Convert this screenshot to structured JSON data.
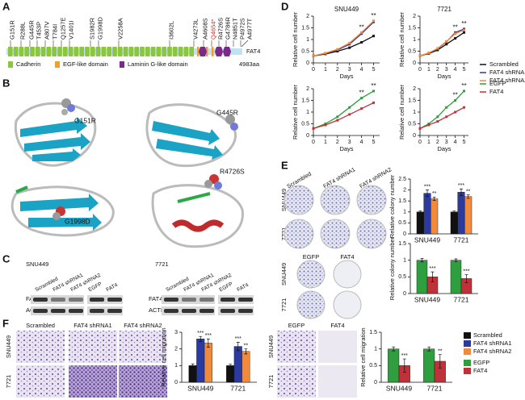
{
  "panels": {
    "a": "A",
    "b": "B",
    "c": "C",
    "d": "D",
    "e": "E",
    "f": "F"
  },
  "panel_a": {
    "mutations": [
      "G151R",
      "R288L",
      "G445R",
      "T453P",
      "A807V",
      "T784I",
      "Q1257E",
      "V1401I",
      "S1982R",
      "G1998D",
      "V2258A",
      "I3602L",
      "V4273L",
      "A4608S",
      "Q4654*",
      "R4726S",
      "G4786R",
      "N4851T",
      "P4972S",
      "A4977T"
    ],
    "protein": "FAT4",
    "length": "4983aa",
    "legend": [
      "Cadherin",
      "EGF-like domain",
      "Laminin G-like domain"
    ]
  },
  "panel_b": {
    "labels": [
      "G151R",
      "G445R",
      "G1998D",
      "R4726S"
    ]
  },
  "panel_c": {
    "cell_lines": [
      "SNU449",
      "7721"
    ],
    "lanes": [
      "Scrambled",
      "FAT4 shRNA1",
      "FAT4 shRNA2",
      "EGFP",
      "FAT4"
    ],
    "rows": [
      "FAT4",
      "ACTB"
    ]
  },
  "panel_e": {
    "columns_top": [
      "Scrambled",
      "FAT4 shRNA1",
      "FAT4 shRNA2"
    ],
    "columns_bottom": [
      "EGFP",
      "FAT4"
    ],
    "rows": [
      "SNU449",
      "7721"
    ]
  },
  "panel_f": {
    "columns_left": [
      "Scrambled",
      "FAT4 shRNA1",
      "FAT4 shRNA2"
    ],
    "columns_right": [
      "EGFP",
      "FAT4"
    ],
    "rows": [
      "SNU449",
      "7721"
    ]
  },
  "chart_data": [
    {
      "type": "line",
      "title": "SNU449",
      "ylabel": "Relative cell number",
      "xlabel": "Days",
      "x": [
        0,
        1,
        2,
        3,
        4,
        5
      ],
      "xlim": [
        0,
        5.5
      ],
      "xticks": [
        0,
        1,
        2,
        3,
        4,
        5
      ],
      "ylim": [
        0,
        2
      ],
      "yticks": [
        0,
        0.5,
        1,
        1.5,
        2
      ],
      "legend": "right",
      "series": [
        {
          "name": "Scrambled",
          "color": "#111111",
          "values": [
            0.3,
            0.38,
            0.5,
            0.65,
            0.88,
            1.15
          ]
        },
        {
          "name": "FAT4 shRNA1",
          "color": "#2b3a9e",
          "values": [
            0.3,
            0.4,
            0.55,
            0.8,
            1.25,
            1.75
          ]
        },
        {
          "name": "FAT4 shRNA2",
          "color": "#f08a3c",
          "values": [
            0.3,
            0.42,
            0.58,
            0.85,
            1.3,
            1.8
          ]
        }
      ],
      "annotations": [
        {
          "x": 4,
          "text": "**"
        },
        {
          "x": 5,
          "text": "**"
        }
      ]
    },
    {
      "type": "line",
      "title": "7721",
      "ylabel": "Relative cell number",
      "xlabel": "Days",
      "x": [
        0,
        1,
        2,
        3,
        4,
        5
      ],
      "xlim": [
        0,
        5.5
      ],
      "xticks": [
        0,
        1,
        2,
        3,
        4,
        5
      ],
      "ylim": [
        0,
        2
      ],
      "yticks": [
        0,
        0.5,
        1,
        1.5,
        2
      ],
      "series": [
        {
          "name": "Scrambled",
          "color": "#111111",
          "values": [
            0.3,
            0.4,
            0.55,
            0.8,
            1.05,
            1.3
          ]
        },
        {
          "name": "FAT4 shRNA1",
          "color": "#2b3a9e",
          "values": [
            0.3,
            0.42,
            0.6,
            0.9,
            1.3,
            1.45
          ]
        },
        {
          "name": "FAT4 shRNA2",
          "color": "#f08a3c",
          "values": [
            0.3,
            0.43,
            0.62,
            0.92,
            1.25,
            1.4
          ]
        }
      ],
      "annotations": [
        {
          "x": 4,
          "text": "**"
        },
        {
          "x": 5,
          "text": "**"
        }
      ]
    },
    {
      "type": "line",
      "ylabel": "Relative cell number",
      "xlabel": "Days",
      "x": [
        0,
        1,
        2,
        3,
        4,
        5
      ],
      "xlim": [
        0,
        5.5
      ],
      "xticks": [
        0,
        1,
        2,
        3,
        4,
        5
      ],
      "ylim": [
        0,
        2
      ],
      "yticks": [
        0,
        0.5,
        1,
        1.5,
        2
      ],
      "legend": "right",
      "series": [
        {
          "name": "EGFP",
          "color": "#2e9e3e",
          "values": [
            0.3,
            0.5,
            0.8,
            1.2,
            1.6,
            1.9
          ]
        },
        {
          "name": "FAT4",
          "color": "#c0323a",
          "values": [
            0.3,
            0.45,
            0.65,
            0.9,
            1.15,
            1.4
          ]
        }
      ],
      "annotations": [
        {
          "x": 4,
          "text": "**"
        },
        {
          "x": 5,
          "text": "**"
        }
      ]
    },
    {
      "type": "line",
      "ylabel": "Relative cell number",
      "xlabel": "Days",
      "x": [
        0,
        1,
        2,
        3,
        4,
        5
      ],
      "xlim": [
        0,
        5.5
      ],
      "xticks": [
        0,
        1,
        2,
        3,
        4,
        5
      ],
      "ylim": [
        0,
        2
      ],
      "yticks": [
        0,
        0.5,
        1,
        1.5,
        2
      ],
      "series": [
        {
          "name": "EGFP",
          "color": "#2e9e3e",
          "values": [
            0.3,
            0.5,
            0.8,
            1.2,
            1.5,
            1.9
          ]
        },
        {
          "name": "FAT4",
          "color": "#c0323a",
          "values": [
            0.3,
            0.45,
            0.6,
            0.8,
            1.0,
            1.2
          ]
        }
      ],
      "annotations": [
        {
          "x": 4,
          "text": "**"
        },
        {
          "x": 5,
          "text": "**"
        }
      ]
    },
    {
      "type": "bar",
      "ylabel": "Relative colony number",
      "categories": [
        "SNU449",
        "7721"
      ],
      "ylim": [
        0,
        2.5
      ],
      "yticks": [
        0,
        0.5,
        1,
        1.5,
        2,
        2.5
      ],
      "series": [
        {
          "name": "Scrambled",
          "color": "#111111",
          "values": [
            1,
            1
          ],
          "errors": [
            0.05,
            0.04
          ]
        },
        {
          "name": "FAT4 shRNA1",
          "color": "#2b3a9e",
          "values": [
            1.85,
            1.9
          ],
          "errors": [
            0.15,
            0.15
          ],
          "stars": [
            "***",
            "***"
          ]
        },
        {
          "name": "FAT4 shRNA2",
          "color": "#f08a3c",
          "values": [
            1.6,
            1.7
          ],
          "errors": [
            0.08,
            0.08
          ],
          "stars": [
            "**",
            "**"
          ]
        }
      ]
    },
    {
      "type": "bar",
      "ylabel": "Relative colony number",
      "categories": [
        "SNU449",
        "7721"
      ],
      "ylim": [
        0,
        1.5
      ],
      "yticks": [
        0,
        0.5,
        1,
        1.5
      ],
      "series": [
        {
          "name": "EGFP",
          "color": "#2e9e3e",
          "values": [
            1,
            1
          ],
          "errors": [
            0.05,
            0.04
          ]
        },
        {
          "name": "FAT4",
          "color": "#c0323a",
          "values": [
            0.5,
            0.45
          ],
          "errors": [
            0.15,
            0.12
          ],
          "stars": [
            "***",
            "***"
          ]
        }
      ]
    },
    {
      "type": "bar",
      "ylabel": "Relative cell migration",
      "categories": [
        "SNU449",
        "7721"
      ],
      "ylim": [
        0,
        3
      ],
      "yticks": [
        0,
        1,
        2,
        3
      ],
      "legend": "right",
      "series": [
        {
          "name": "Scrambled",
          "color": "#111111",
          "values": [
            1,
            1
          ],
          "errors": [
            0.1,
            0.08
          ]
        },
        {
          "name": "FAT4 shRNA1",
          "color": "#2b3a9e",
          "values": [
            2.6,
            2.15
          ],
          "errors": [
            0.15,
            0.25
          ],
          "stars": [
            "***",
            "***"
          ]
        },
        {
          "name": "FAT4 shRNA2",
          "color": "#f08a3c",
          "values": [
            2.35,
            1.85
          ],
          "errors": [
            0.25,
            0.15
          ],
          "stars": [
            "***",
            "**"
          ]
        }
      ]
    },
    {
      "type": "bar",
      "ylabel": "Relative cell migration",
      "categories": [
        "SNU449",
        "7721"
      ],
      "ylim": [
        0,
        1.5
      ],
      "yticks": [
        0,
        0.5,
        1,
        1.5
      ],
      "legend": "right",
      "series": [
        {
          "name": "EGFP",
          "color": "#2e9e3e",
          "values": [
            1,
            1
          ],
          "errors": [
            0.06,
            0.06
          ]
        },
        {
          "name": "FAT4",
          "color": "#c0323a",
          "values": [
            0.5,
            0.63
          ],
          "errors": [
            0.2,
            0.2
          ],
          "stars": [
            "***",
            "**"
          ]
        }
      ]
    }
  ]
}
